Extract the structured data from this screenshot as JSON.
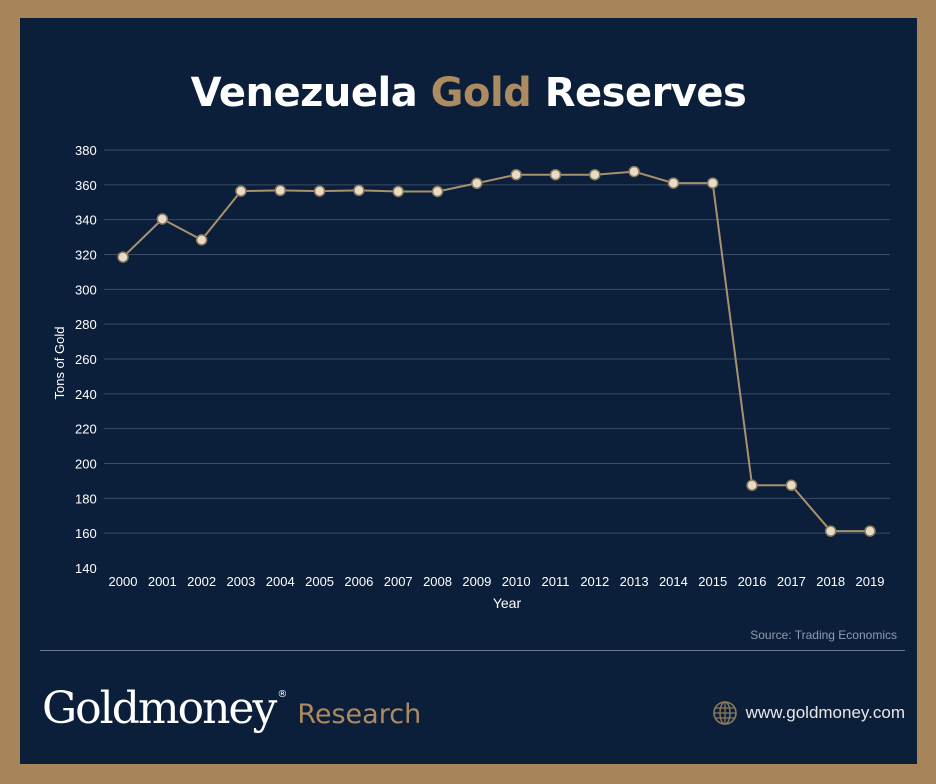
{
  "title": {
    "part1": "Venezuela",
    "part2": "Gold",
    "part3": "Reserves"
  },
  "chart_data": {
    "type": "line",
    "xlabel": "Year",
    "ylabel": "Tons of Gold",
    "ylim": [
      140,
      380
    ],
    "yticks": [
      140,
      160,
      180,
      200,
      220,
      240,
      260,
      280,
      300,
      320,
      340,
      360,
      380
    ],
    "grid": true,
    "categories": [
      "2000",
      "2001",
      "2002",
      "2003",
      "2004",
      "2005",
      "2006",
      "2007",
      "2008",
      "2009",
      "2010",
      "2011",
      "2012",
      "2013",
      "2014",
      "2015",
      "2016",
      "2017",
      "2018",
      "2019"
    ],
    "series": [
      {
        "values": [
          318.5,
          340.4,
          328.4,
          356.4,
          356.8,
          356.4,
          356.8,
          356.2,
          356.2,
          360.9,
          365.8,
          365.8,
          365.8,
          367.6,
          361.0,
          361.0,
          187.5,
          187.5,
          161.2,
          161.2
        ]
      }
    ],
    "colors": {
      "line": "#a8916c",
      "marker_fill": "#e8dcc6",
      "marker_stroke": "#8a7a5e",
      "grid": "#3a4c66",
      "axis_text": "#ffffff"
    }
  },
  "source": "Source: Trading Economics",
  "brand": {
    "name": "Goldmoney",
    "reg": "®",
    "sub": "Research"
  },
  "website": {
    "label": "www.goldmoney.com",
    "icon": "globe-icon"
  }
}
